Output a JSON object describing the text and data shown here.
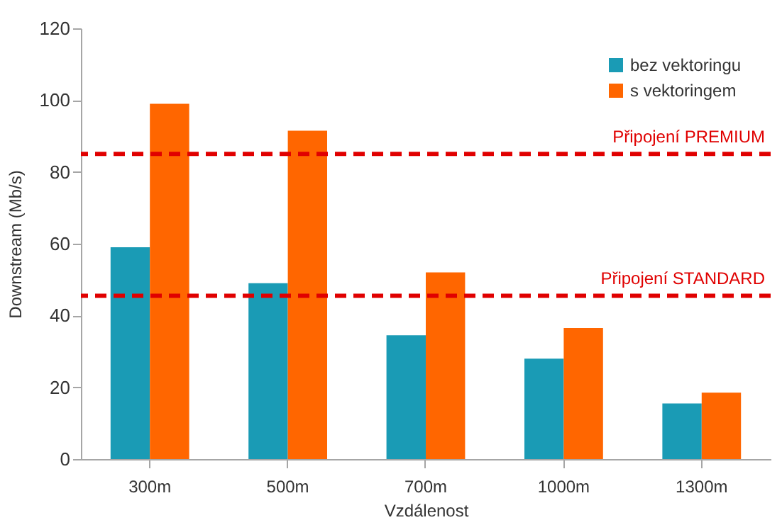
{
  "chart_data": {
    "type": "bar",
    "xlabel": "Vzdálenost",
    "ylabel": "Downstream (Mb/s)",
    "categories": [
      "300m",
      "500m",
      "700m",
      "1000m",
      "1300m"
    ],
    "series": [
      {
        "name": "bez vektoringu",
        "color": "#1a9bb5",
        "values": [
          59,
          49,
          34.5,
          28,
          15.5
        ]
      },
      {
        "name": "s vektoringem",
        "color": "#ff6600",
        "values": [
          99,
          91.5,
          52,
          36.5,
          18.5
        ]
      }
    ],
    "ylim": [
      0,
      120
    ],
    "yticks": [
      0,
      20,
      40,
      60,
      80,
      100,
      120
    ],
    "grid": false,
    "legend": "top right",
    "ref_lines": [
      {
        "axis": "y",
        "value": 85,
        "label": "Připojení PREMIUM",
        "color": "#e00000",
        "line_style": "dashed"
      },
      {
        "axis": "y",
        "value": 45.5,
        "label": "Připojení STANDARD",
        "color": "#e00000",
        "line_style": "dashed"
      }
    ]
  }
}
